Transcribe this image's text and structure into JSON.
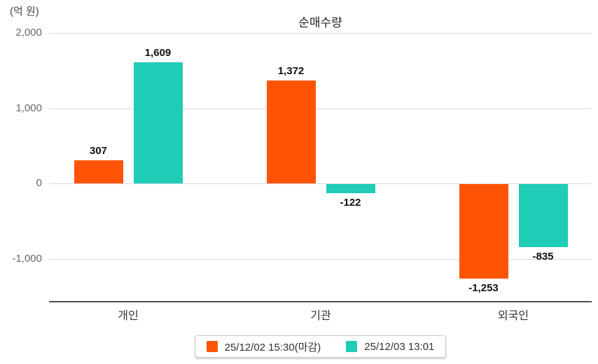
{
  "chart": {
    "title": "순매수량",
    "unit_label": "(억 원)"
  },
  "chart_data": {
    "type": "bar",
    "title": "순매수량",
    "ylabel": "(억 원)",
    "categories": [
      "개인",
      "기관",
      "외국인"
    ],
    "series": [
      {
        "name": "25/12/02 15:30(마감)",
        "color": "#ff5405",
        "values": [
          307,
          1372,
          -1253
        ]
      },
      {
        "name": "25/12/03 13:01",
        "color": "#1fccb6",
        "values": [
          1609,
          -122,
          -835
        ]
      }
    ],
    "value_labels": [
      [
        "307",
        "1,372",
        "-1,253"
      ],
      [
        "1,609",
        "-122",
        "-835"
      ]
    ],
    "yticks": [
      2000,
      1000,
      0,
      -1000
    ],
    "ytick_labels": [
      "2,000",
      "1,000",
      "0",
      "-1,000"
    ],
    "ylim": [
      -1570,
      2000
    ],
    "grid": true,
    "legend_position": "bottom"
  }
}
